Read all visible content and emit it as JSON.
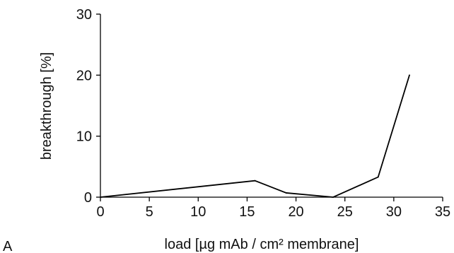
{
  "panel_label": "A",
  "chart_data": {
    "type": "line",
    "title": "",
    "xlabel": "load [µg mAb / cm² membrane]",
    "ylabel": "breakthrough [%]",
    "xlim": [
      0,
      35
    ],
    "ylim": [
      0,
      30
    ],
    "x_ticks": [
      0,
      5,
      10,
      15,
      20,
      25,
      30,
      35
    ],
    "y_ticks": [
      0,
      10,
      20,
      30
    ],
    "grid": false,
    "legend": "none",
    "series": [
      {
        "color": "#000000",
        "x": [
          0,
          15.8,
          19.0,
          23.8,
          28.4,
          31.6
        ],
        "y": [
          0,
          2.7,
          0.7,
          0,
          3.3,
          20.0
        ]
      }
    ]
  }
}
